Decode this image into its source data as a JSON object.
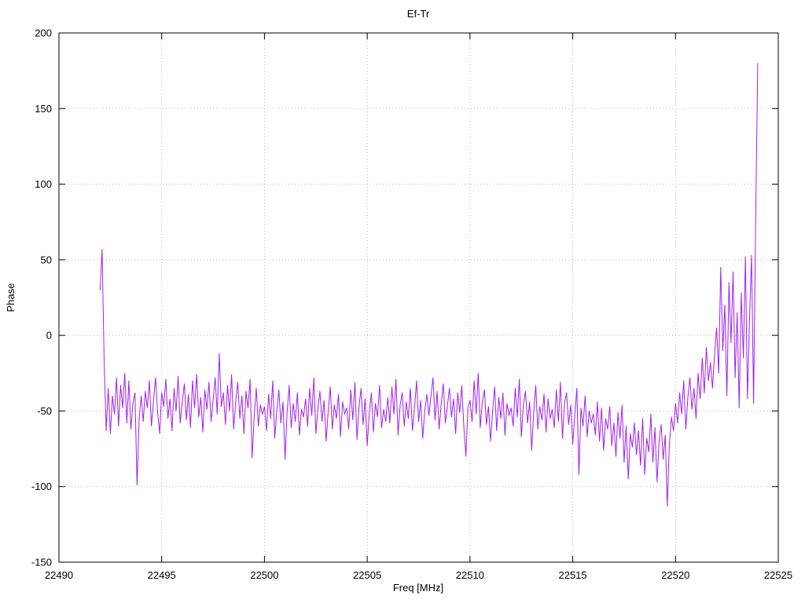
{
  "chart_data": {
    "type": "line",
    "title": "Ef-Tr",
    "xlabel": "Freq [MHz]",
    "ylabel": "Phase",
    "xlim": [
      22490,
      22525
    ],
    "ylim": [
      -150,
      200
    ],
    "xticks": [
      22490,
      22495,
      22500,
      22505,
      22510,
      22515,
      22520,
      22525
    ],
    "yticks": [
      -150,
      -100,
      -50,
      0,
      50,
      100,
      150,
      200
    ],
    "grid": true,
    "legend_position": "none",
    "line_color": "#a020f0",
    "grid_color": "#b8b8b8",
    "axis_color": "#000000",
    "background_color": "#ffffff",
    "series": [
      {
        "name": "Ef-Tr",
        "x_start": 22492.0,
        "x_step": 0.1,
        "y": [
          30,
          57,
          -18,
          -63,
          -35,
          -65,
          -40,
          -52,
          -28,
          -60,
          -33,
          -48,
          -25,
          -58,
          -30,
          -62,
          -45,
          -38,
          -99,
          -55,
          -40,
          -57,
          -37,
          -48,
          -30,
          -60,
          -43,
          -28,
          -51,
          -65,
          -38,
          -47,
          -29,
          -55,
          -42,
          -63,
          -35,
          -50,
          -27,
          -58,
          -44,
          -32,
          -56,
          -39,
          -61,
          -30,
          -48,
          -26,
          -54,
          -41,
          -64,
          -36,
          -49,
          -31,
          -57,
          -43,
          -28,
          -52,
          -12,
          -47,
          -38,
          -59,
          -33,
          -50,
          -26,
          -62,
          -44,
          -31,
          -55,
          -40,
          -65,
          -37,
          -48,
          -29,
          -81,
          -53,
          -35,
          -60,
          -46,
          -52,
          -47,
          -63,
          -39,
          -55,
          -30,
          -68,
          -50,
          -36,
          -58,
          -44,
          -82,
          -51,
          -33,
          -61,
          -45,
          -57,
          -38,
          -66,
          -49,
          -54,
          -42,
          -60,
          -35,
          -53,
          -28,
          -65,
          -48,
          -37,
          -57,
          -43,
          -70,
          -50,
          -34,
          -62,
          -46,
          -55,
          -39,
          -67,
          -44,
          -52,
          -48,
          -62,
          -36,
          -56,
          -31,
          -69,
          -47,
          -35,
          -59,
          -42,
          -73,
          -51,
          -38,
          -64,
          -45,
          -54,
          -33,
          -61,
          -49,
          -57,
          -41,
          -58,
          -34,
          -52,
          -29,
          -66,
          -46,
          -38,
          -60,
          -44,
          -55,
          -35,
          -63,
          -48,
          -30,
          -57,
          -43,
          -68,
          -50,
          -39,
          -53,
          -40,
          -28,
          -56,
          -37,
          -62,
          -45,
          -32,
          -58,
          -47,
          -35,
          -54,
          -42,
          -65,
          -38,
          -51,
          -33,
          -60,
          -80,
          -48,
          -43,
          -57,
          -30,
          -52,
          -25,
          -61,
          -44,
          -36,
          -59,
          -47,
          -70,
          -50,
          -34,
          -63,
          -41,
          -55,
          -38,
          -66,
          -45,
          -53,
          -48,
          -60,
          -35,
          -54,
          -29,
          -67,
          -46,
          -37,
          -58,
          -44,
          -76,
          -51,
          -33,
          -62,
          -47,
          -56,
          -39,
          -64,
          -42,
          -55,
          -49,
          -61,
          -36,
          -57,
          -31,
          -68,
          -45,
          -38,
          -59,
          -46,
          -72,
          -52,
          -35,
          -92,
          -48,
          -60,
          -40,
          -67,
          -50,
          -58,
          -52,
          -66,
          -44,
          -70,
          -48,
          -76,
          -55,
          -62,
          -47,
          -73,
          -58,
          -80,
          -51,
          -68,
          -46,
          -84,
          -60,
          -95,
          -65,
          -74,
          -58,
          -79,
          -63,
          -86,
          -55,
          -92,
          -68,
          -77,
          -52,
          -84,
          -61,
          -97,
          -70,
          -59,
          -82,
          -66,
          -113,
          -73,
          -54,
          -63,
          -45,
          -58,
          -38,
          -52,
          -30,
          -62,
          -41,
          -28,
          -49,
          -35,
          -55,
          -25,
          -42,
          -15,
          -38,
          -8,
          -30,
          -18,
          -35,
          -12,
          5,
          -25,
          45,
          -10,
          20,
          -40,
          35,
          -5,
          42,
          -28,
          15,
          -48,
          28,
          -15,
          52,
          -42,
          10,
          53,
          -45,
          75,
          180
        ]
      }
    ]
  }
}
